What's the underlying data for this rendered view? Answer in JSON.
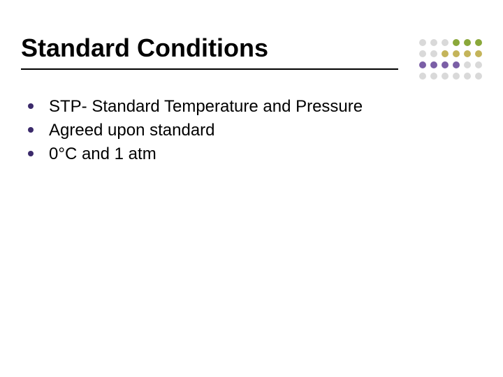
{
  "title": "Standard Conditions",
  "bullet_color": "#3b2a6b",
  "text_color": "#000000",
  "bullets": [
    "STP- Standard Temperature and Pressure",
    "Agreed upon standard",
    "0°C and 1 atm"
  ],
  "decor": {
    "rows": 4,
    "cols": 6,
    "colors": [
      [
        "#d9d9d9",
        "#d9d9d9",
        "#d9d9d9",
        "#8aa83a",
        "#8aa83a",
        "#8aa83a"
      ],
      [
        "#d9d9d9",
        "#d9d9d9",
        "#c4b45a",
        "#c4b45a",
        "#c4b45a",
        "#c4b45a"
      ],
      [
        "#7b5fa6",
        "#7b5fa6",
        "#7b5fa6",
        "#7b5fa6",
        "#d9d9d9",
        "#d9d9d9"
      ],
      [
        "#d9d9d9",
        "#d9d9d9",
        "#d9d9d9",
        "#d9d9d9",
        "#d9d9d9",
        "#d9d9d9"
      ]
    ]
  }
}
